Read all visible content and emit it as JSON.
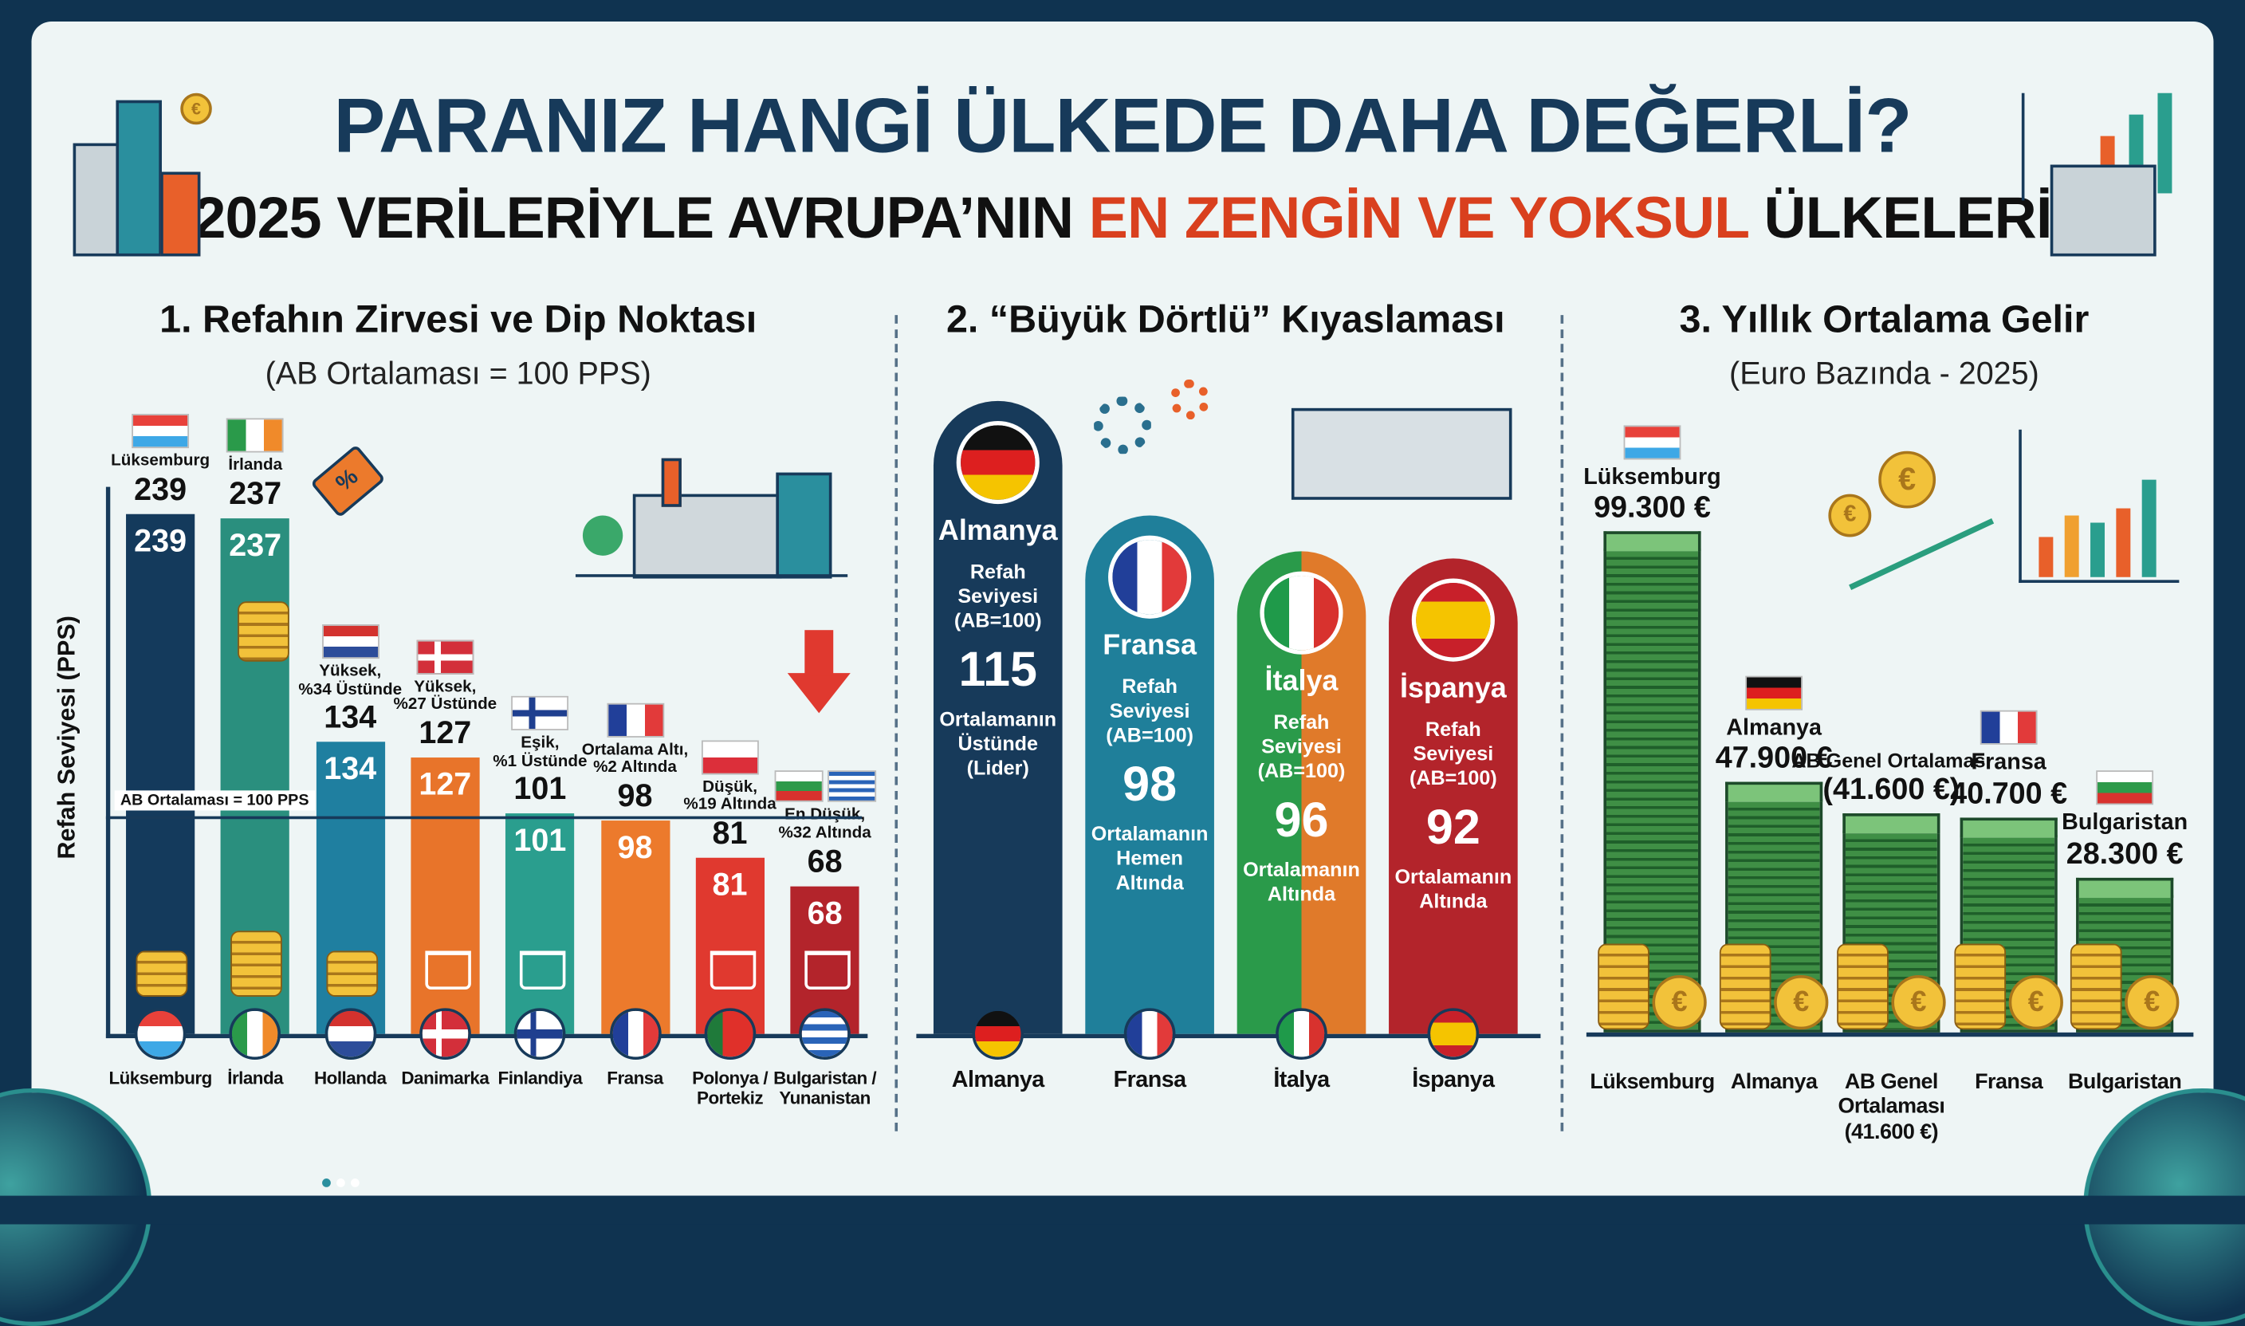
{
  "header": {
    "title": "PARANIZ HANGİ ÜLKEDE DAHA DEĞERLİ?",
    "subtitle_pre": "2025 VERİLERİYLE AVRUPA’NIN ",
    "subtitle_highlight": "EN ZENGİN VE YOKSUL",
    "subtitle_post": " ÜLKELERİ",
    "title_color": "#173a5a",
    "highlight_color": "#d9401e"
  },
  "flags": {
    "lu": {
      "dir": "h",
      "colors": [
        "#e8413a",
        "#ffffff",
        "#3ea8e6"
      ]
    },
    "ie": {
      "dir": "v",
      "colors": [
        "#2a9a4a",
        "#ffffff",
        "#f08a2a"
      ]
    },
    "nl": {
      "dir": "h",
      "colors": [
        "#d3322e",
        "#ffffff",
        "#2d4d9a"
      ]
    },
    "dk": {
      "cross": true,
      "bg": "#d32f3a",
      "fg": "#ffffff"
    },
    "fi": {
      "cross": true,
      "bg": "#ffffff",
      "fg": "#1f3f8f"
    },
    "fr": {
      "dir": "v",
      "colors": [
        "#213f99",
        "#ffffff",
        "#e23a3a"
      ]
    },
    "pl": {
      "dir": "h",
      "colors": [
        "#ffffff",
        "#dc2f3a"
      ]
    },
    "pt": {
      "dir": "v",
      "colors": [
        "#1f7a3a",
        "#e0302a",
        "#e0302a"
      ]
    },
    "bg": {
      "dir": "h",
      "colors": [
        "#ffffff",
        "#2e9a4a",
        "#d8322e"
      ]
    },
    "gr": {
      "dir": "h",
      "colors": [
        "#2a64b8",
        "#ffffff",
        "#2a64b8",
        "#ffffff",
        "#2a64b8",
        "#ffffff",
        "#2a64b8"
      ]
    },
    "de": {
      "dir": "h",
      "colors": [
        "#111111",
        "#dd1f1f",
        "#f5c400"
      ]
    },
    "it": {
      "dir": "v",
      "colors": [
        "#1f9a4a",
        "#ffffff",
        "#d8322e"
      ]
    },
    "es": {
      "dir": "h",
      "colors": [
        "#c8202a",
        "#f5c400",
        "#f5c400",
        "#c8202a"
      ]
    }
  },
  "chart_data": [
    {
      "type": "bar",
      "title": "1. Refahın Zirvesi ve Dip Noktası",
      "subtitle": "(AB Ortalaması = 100 PPS)",
      "ylabel": "Refah Seviyesi (PPS)",
      "reference": {
        "value": 100,
        "label": "AB Ortalaması = 100 PPS"
      },
      "categories": [
        "Lüksemburg",
        "İrlanda",
        "Hollanda",
        "Danimarka",
        "Finlandiya",
        "Fransa",
        "Polonya /\nPortekiz",
        "Bulgaristan /\nYunanistan"
      ],
      "values": [
        239,
        237,
        134,
        127,
        101,
        98,
        81,
        68
      ],
      "annotations": [
        "Lüksemburg",
        "İrlanda",
        "Yüksek,\n%34 Üstünde",
        "Yüksek,\n%27 Üstünde",
        "Eşik,\n%1 Üstünde",
        "Ortalama Altı,\n%2 Altında",
        "Düşük,\n%19 Altında",
        "En Düşük,\n%32 Altında"
      ],
      "colors": [
        "#143a5c",
        "#2a8f7e",
        "#1f7fa0",
        "#e8742a",
        "#2a9e8e",
        "#ec7a2c",
        "#e0392f",
        "#b3242b"
      ],
      "top_flags": [
        [
          "lu"
        ],
        [
          "ie"
        ],
        [
          "nl"
        ],
        [
          "dk"
        ],
        [
          "fi"
        ],
        [
          "fr"
        ],
        [
          "pl"
        ],
        [
          "bg",
          "gr"
        ]
      ],
      "bottom_flags": [
        "lu",
        "ie",
        "nl",
        "dk",
        "fi",
        "fr",
        "pt",
        "gr"
      ]
    },
    {
      "type": "bar",
      "title": "2. “Büyük Dörtlü” Kıyaslaması",
      "categories": [
        "Almanya",
        "Fransa",
        "İtalya",
        "İspanya"
      ],
      "values": [
        115,
        98,
        96,
        92
      ],
      "metric_label": "Refah\nSeviyesi\n(AB=100)",
      "descriptions": [
        "Ortalamanın\nÜstünde\n(Lider)",
        "Ortalamanın\nHemen\nAltında",
        "Ortalamanın\nAltında",
        "Ortalamanın\nAltında"
      ],
      "colors": [
        "#173a5a",
        "#1f7f9a",
        "#2a9a4a|#e07a2a",
        "#b3242b"
      ],
      "flags": [
        "de",
        "fr",
        "it",
        "es"
      ]
    },
    {
      "type": "bar",
      "title": "3. Yıllık Ortalama Gelir",
      "subtitle": "(Euro Bazında - 2025)",
      "categories": [
        "Lüksemburg",
        "Almanya",
        "AB Genel\nOrtalaması\n(41.600 €)",
        "Fransa",
        "Bulgaristan"
      ],
      "names": [
        "Lüksemburg",
        "Almanya",
        "AB Genel Ortalaması",
        "Fransa",
        "Bulgaristan"
      ],
      "values": [
        99300,
        47900,
        41600,
        40700,
        28300
      ],
      "value_labels": [
        "99.300 €",
        "47.900 €",
        "(41.600 €)",
        "40.700 €",
        "28.300 €"
      ],
      "unit": "€",
      "flags": [
        "lu",
        "de",
        "",
        "fr",
        "bg"
      ]
    }
  ]
}
